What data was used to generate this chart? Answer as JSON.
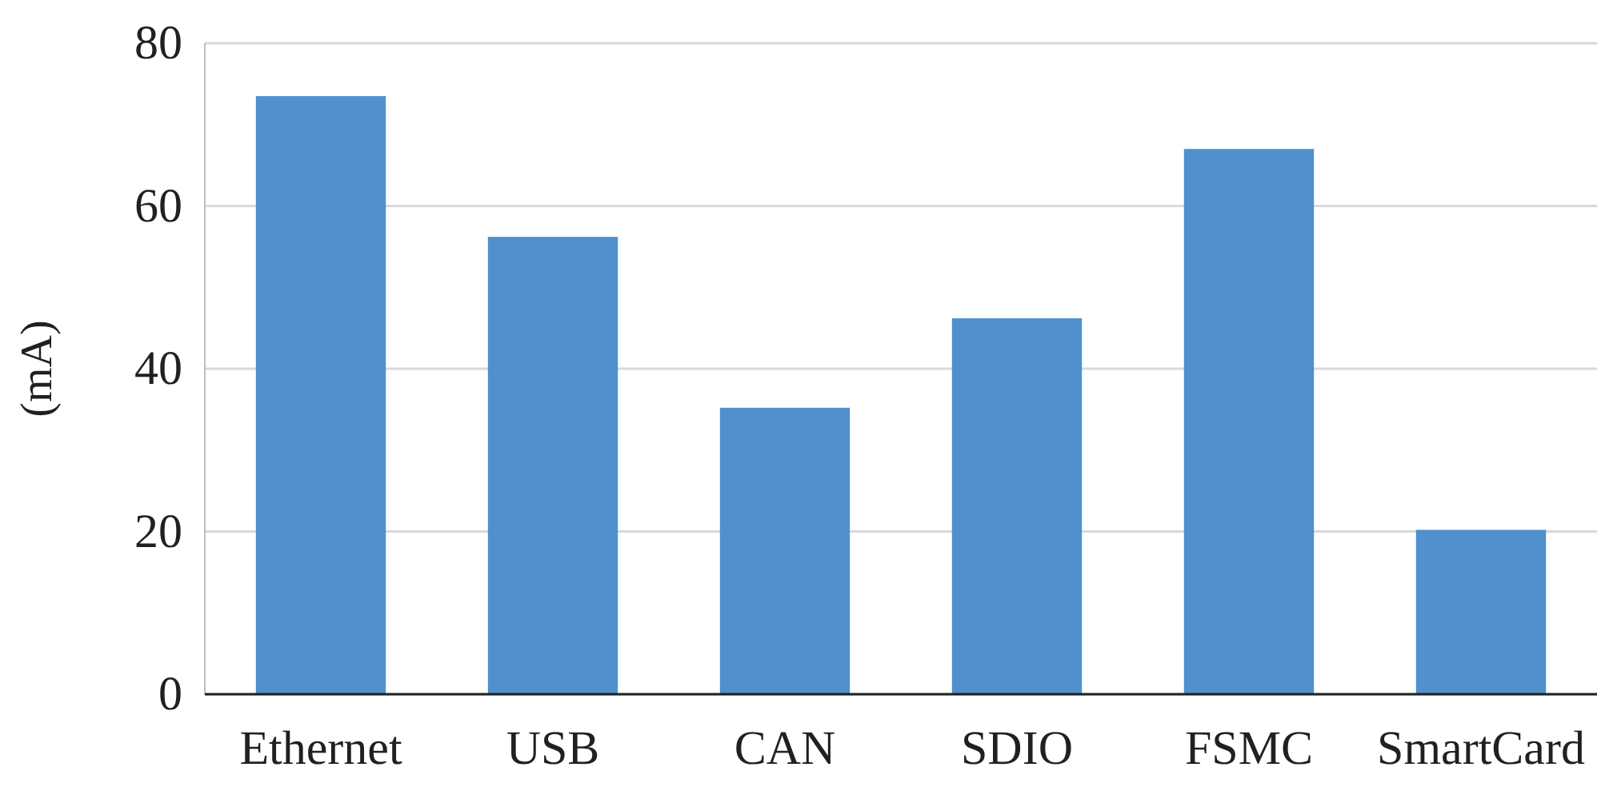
{
  "chart_data": {
    "type": "bar",
    "ylabel": "(mA)",
    "categories": [
      "Ethernet",
      "USB",
      "CAN",
      "SDIO",
      "FSMC",
      "SmartCard"
    ],
    "values": [
      73.5,
      56.2,
      35.2,
      46.2,
      67.0,
      20.2
    ],
    "color": "#4f90cd",
    "ylim": [
      0,
      80
    ],
    "yticks": [
      0,
      20,
      40,
      60,
      80
    ],
    "grid": "y"
  }
}
